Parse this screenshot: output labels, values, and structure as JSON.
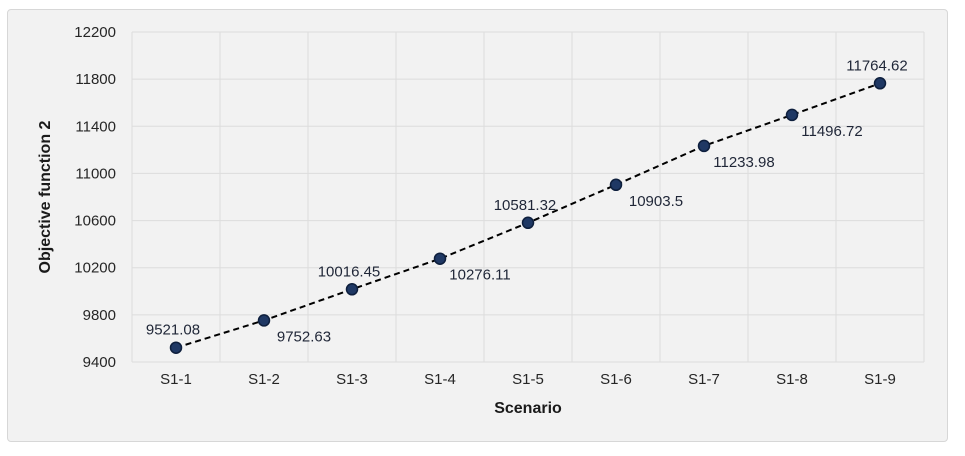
{
  "chart_data": {
    "type": "line",
    "title": "",
    "xlabel": "Scenario",
    "ylabel": "Objective function 2",
    "categories": [
      "S1-1",
      "S1-2",
      "S1-3",
      "S1-4",
      "S1-5",
      "S1-6",
      "S1-7",
      "S1-8",
      "S1-9"
    ],
    "series": [
      {
        "name": "Objective function 2",
        "values": [
          9521.08,
          9752.63,
          10016.45,
          10276.11,
          10581.32,
          10903.5,
          11233.98,
          11496.72,
          11764.62
        ]
      }
    ],
    "data_labels": [
      "9521.08",
      "9752.63",
      "10016.45",
      "10276.11",
      "10581.32",
      "10903.5",
      "11233.98",
      "11496.72",
      "11764.62"
    ],
    "label_placement": [
      "above",
      "below",
      "above",
      "below",
      "above",
      "below",
      "below",
      "below",
      "above"
    ],
    "yticks": [
      9400,
      9800,
      10200,
      10600,
      11000,
      11400,
      11800,
      12200
    ],
    "ylim": [
      9400,
      12200
    ],
    "grid": "both",
    "legend": "none",
    "line_style": "dashed",
    "marker": "circle",
    "colors": {
      "marker_fill": "#1f3864",
      "marker_edge": "#0e1f3d",
      "line": "#000000",
      "grid": "#dcdcdc",
      "chart_bg": "#f2f2f2",
      "page_bg": "#ffffff",
      "frame_border": "#d7d7d7",
      "tick_text": "#262626",
      "data_label_text": "#1f2637",
      "title_text": "#1a1a1a"
    }
  }
}
